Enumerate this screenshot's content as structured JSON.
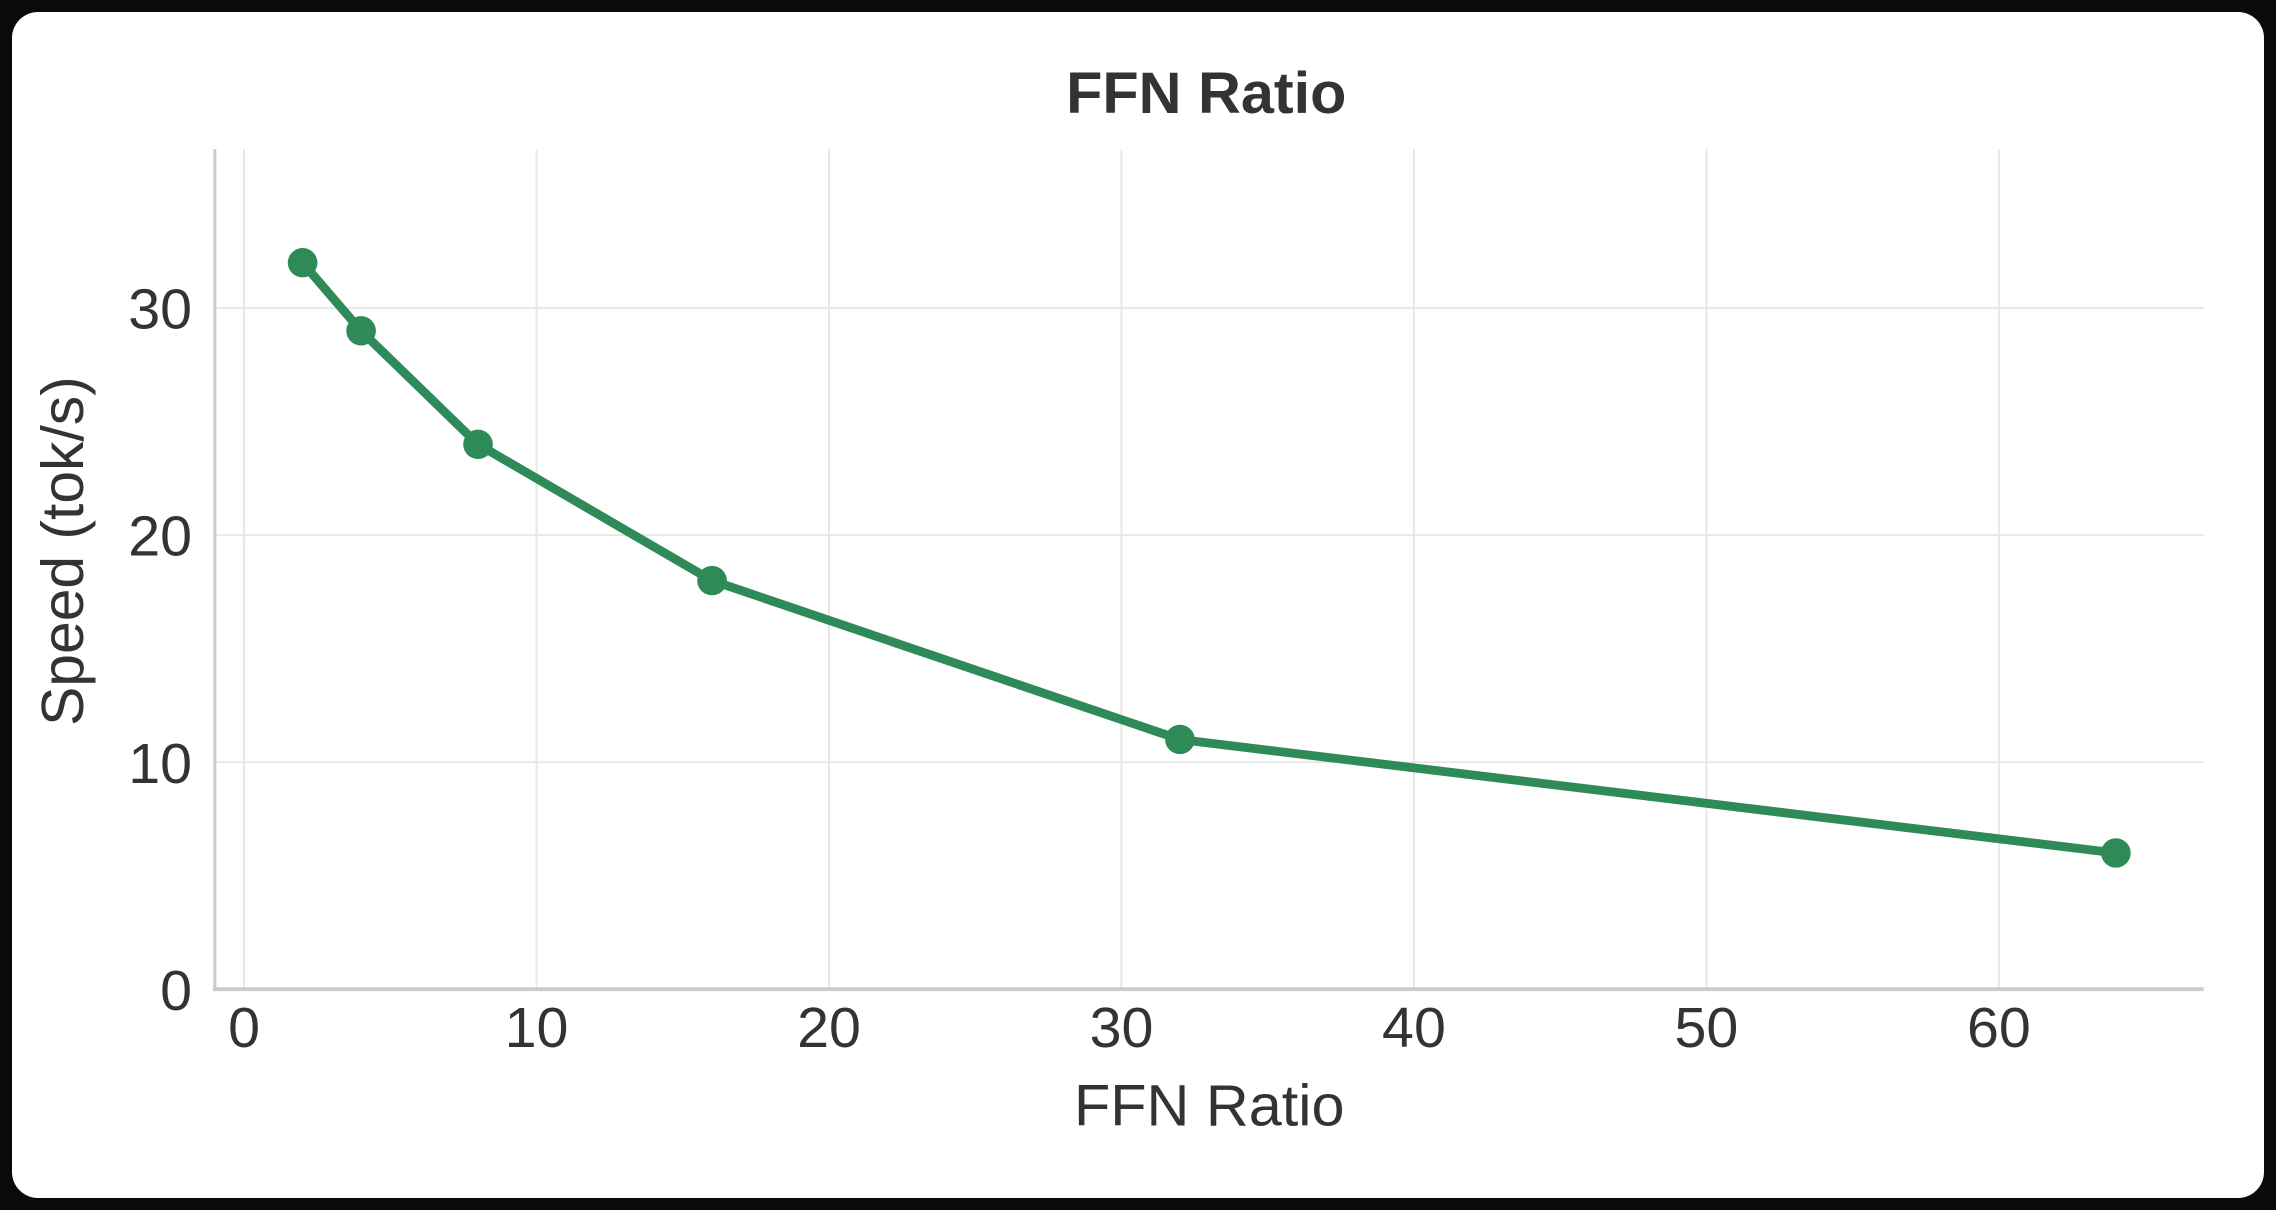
{
  "chart_data": {
    "type": "line",
    "title": "FFN Ratio",
    "xlabel": "FFN Ratio",
    "ylabel": "Speed (tok/s)",
    "x": [
      2,
      4,
      8,
      16,
      32,
      64
    ],
    "values": [
      32,
      29,
      24,
      18,
      11,
      6
    ],
    "series_name": "Speed (tok/s)",
    "xticks": [
      0,
      10,
      20,
      30,
      40,
      50,
      60
    ],
    "yticks": [
      0,
      10,
      20,
      30
    ],
    "xlim": [
      -1,
      67
    ],
    "ylim": [
      0,
      37
    ],
    "grid": true,
    "legend_position": "none",
    "line_color": "#2e8b57",
    "marker": "circle",
    "marker_size": 15,
    "line_width": 9,
    "grid_color": "#e7e7e7",
    "spine_color": "#cbcbcb",
    "text_color": "#333333",
    "plot_background": "#ffffff"
  }
}
